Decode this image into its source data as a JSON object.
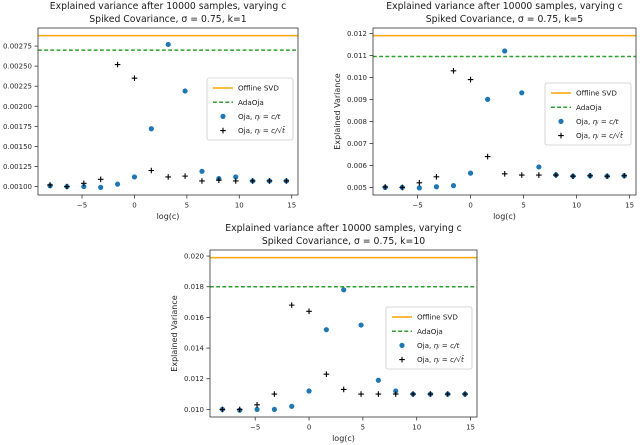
{
  "figure": {
    "background": "#ffffff"
  },
  "colors": {
    "offline_svd": "#ffa500",
    "adaoja": "#2ca02c",
    "oja_ct": "#1f77b4",
    "oja_csqrt": "#000000",
    "axis": "#333333",
    "text": "#262626",
    "legend_border": "#cccccc",
    "legend_bg": "#ffffff"
  },
  "legend_labels": [
    "Offline SVD",
    "AdaOja",
    "Oja, ηᵢ = c/t",
    "Oja, ηᵢ = c/√t̄"
  ],
  "chart_data": [
    {
      "type": "scatter",
      "title": "Explained variance after 10000 samples, varying c",
      "subtitle": "Spiked Covariance, σ = 0.75, k=1",
      "xlabel": "log(c)",
      "ylabel": "",
      "xlim": [
        -9.2,
        15.6
      ],
      "ylim": [
        0.000895,
        0.002975
      ],
      "xticks": [
        -5,
        0,
        5,
        10,
        15
      ],
      "xtick_labels": [
        "−5",
        "0",
        "5",
        "10",
        "15"
      ],
      "yticks": [
        0.001,
        0.00125,
        0.0015,
        0.00175,
        0.002,
        0.00225,
        0.0025,
        0.00275
      ],
      "ytick_labels": [
        "0.00100",
        "0.00125",
        "0.00150",
        "0.00175",
        "0.00200",
        "0.00225",
        "0.00250",
        "0.00275"
      ],
      "grid": false,
      "legend_position": "center right",
      "hlines": [
        {
          "name": "Offline SVD",
          "y": 0.00288,
          "style": "solid",
          "color_key": "offline_svd"
        },
        {
          "name": "AdaOja",
          "y": 0.0027,
          "style": "dashed",
          "color_key": "adaoja"
        }
      ],
      "x": [
        -8.05,
        -6.44,
        -4.83,
        -3.22,
        -1.61,
        0,
        1.61,
        3.22,
        4.83,
        6.44,
        8.05,
        9.66,
        11.27,
        12.88,
        14.49
      ],
      "series": [
        {
          "name": "Oja, ηᵢ = c/t",
          "marker": "circle",
          "color_key": "oja_ct",
          "values": [
            0.00101,
            0.001,
            0.001,
            0.00099,
            0.00103,
            0.00112,
            0.00172,
            0.00277,
            0.00219,
            0.00119,
            0.0011,
            0.00112,
            0.00107,
            0.00107,
            0.00107
          ]
        },
        {
          "name": "Oja, ηᵢ = c/√t̄",
          "marker": "plus",
          "color_key": "oja_csqrt",
          "values": [
            0.00102,
            0.001,
            0.00104,
            0.00109,
            0.00252,
            0.00235,
            0.0012,
            0.00112,
            0.00113,
            0.00107,
            0.00108,
            0.00107,
            0.00107,
            0.00107,
            0.00107
          ]
        }
      ]
    },
    {
      "type": "scatter",
      "title": "Explained variance after 10000 samples, varying c",
      "subtitle": "Spiked Covariance, σ = 0.75, k=5",
      "xlabel": "log(c)",
      "ylabel": "Explained Variance",
      "xlim": [
        -9.2,
        15.6
      ],
      "ylim": [
        0.004655,
        0.012245
      ],
      "xticks": [
        -5,
        0,
        5,
        10,
        15
      ],
      "xtick_labels": [
        "−5",
        "0",
        "5",
        "10",
        "15"
      ],
      "yticks": [
        0.005,
        0.006,
        0.007,
        0.008,
        0.009,
        0.01,
        0.011,
        0.012
      ],
      "ytick_labels": [
        "0.005",
        "0.006",
        "0.007",
        "0.008",
        "0.009",
        "0.010",
        "0.011",
        "0.012"
      ],
      "grid": false,
      "legend_position": "center right",
      "hlines": [
        {
          "name": "Offline SVD",
          "y": 0.0119,
          "style": "solid",
          "color_key": "offline_svd"
        },
        {
          "name": "AdaOja",
          "y": 0.01095,
          "style": "dashed",
          "color_key": "adaoja"
        }
      ],
      "x": [
        -8.05,
        -6.44,
        -4.83,
        -3.22,
        -1.61,
        0,
        1.61,
        3.22,
        4.83,
        6.44,
        8.05,
        9.66,
        11.27,
        12.88,
        14.49
      ],
      "series": [
        {
          "name": "Oja, ηᵢ = c/t",
          "marker": "circle",
          "color_key": "oja_ct",
          "values": [
            0.005,
            0.005,
            0.00498,
            0.00503,
            0.00508,
            0.00565,
            0.009,
            0.0112,
            0.0093,
            0.00593,
            0.00557,
            0.00551,
            0.00553,
            0.00551,
            0.00553
          ]
        },
        {
          "name": "Oja, ηᵢ = c/√t̄",
          "marker": "plus",
          "color_key": "oja_csqrt",
          "values": [
            0.00502,
            0.005,
            0.00521,
            0.00548,
            0.0103,
            0.0099,
            0.0064,
            0.00562,
            0.00556,
            0.00556,
            0.00556,
            0.00551,
            0.00553,
            0.00551,
            0.00553
          ]
        }
      ]
    },
    {
      "type": "scatter",
      "title": "Explained variance after 10000 samples, varying c",
      "subtitle": "Spiked Covariance, σ = 0.75, k=10",
      "xlabel": "log(c)",
      "ylabel": "Explained Variance",
      "xlim": [
        -9.2,
        15.6
      ],
      "ylim": [
        0.009505,
        0.020395
      ],
      "xticks": [
        -5,
        0,
        5,
        10,
        15
      ],
      "xtick_labels": [
        "−5",
        "0",
        "5",
        "10",
        "15"
      ],
      "yticks": [
        0.01,
        0.012,
        0.014,
        0.016,
        0.018,
        0.02
      ],
      "ytick_labels": [
        "0.010",
        "0.012",
        "0.014",
        "0.016",
        "0.018",
        "0.020"
      ],
      "grid": false,
      "legend_position": "center right",
      "hlines": [
        {
          "name": "Offline SVD",
          "y": 0.0199,
          "style": "solid",
          "color_key": "offline_svd"
        },
        {
          "name": "AdaOja",
          "y": 0.018,
          "style": "dashed",
          "color_key": "adaoja"
        }
      ],
      "x": [
        -8.05,
        -6.44,
        -4.83,
        -3.22,
        -1.61,
        0,
        1.61,
        3.22,
        4.83,
        6.44,
        8.05,
        9.66,
        11.27,
        12.88,
        14.49
      ],
      "series": [
        {
          "name": "Oja, ηᵢ = c/t",
          "marker": "circle",
          "color_key": "oja_ct",
          "values": [
            0.01,
            0.00995,
            0.01,
            0.01,
            0.0102,
            0.0112,
            0.0152,
            0.0178,
            0.0155,
            0.0119,
            0.0112,
            0.011,
            0.011,
            0.011,
            0.011
          ]
        },
        {
          "name": "Oja, ηᵢ = c/√t̄",
          "marker": "plus",
          "color_key": "oja_csqrt",
          "values": [
            0.01,
            0.01,
            0.0103,
            0.011,
            0.0168,
            0.0164,
            0.0123,
            0.0113,
            0.011,
            0.011,
            0.011,
            0.011,
            0.011,
            0.011,
            0.011
          ]
        }
      ]
    }
  ]
}
